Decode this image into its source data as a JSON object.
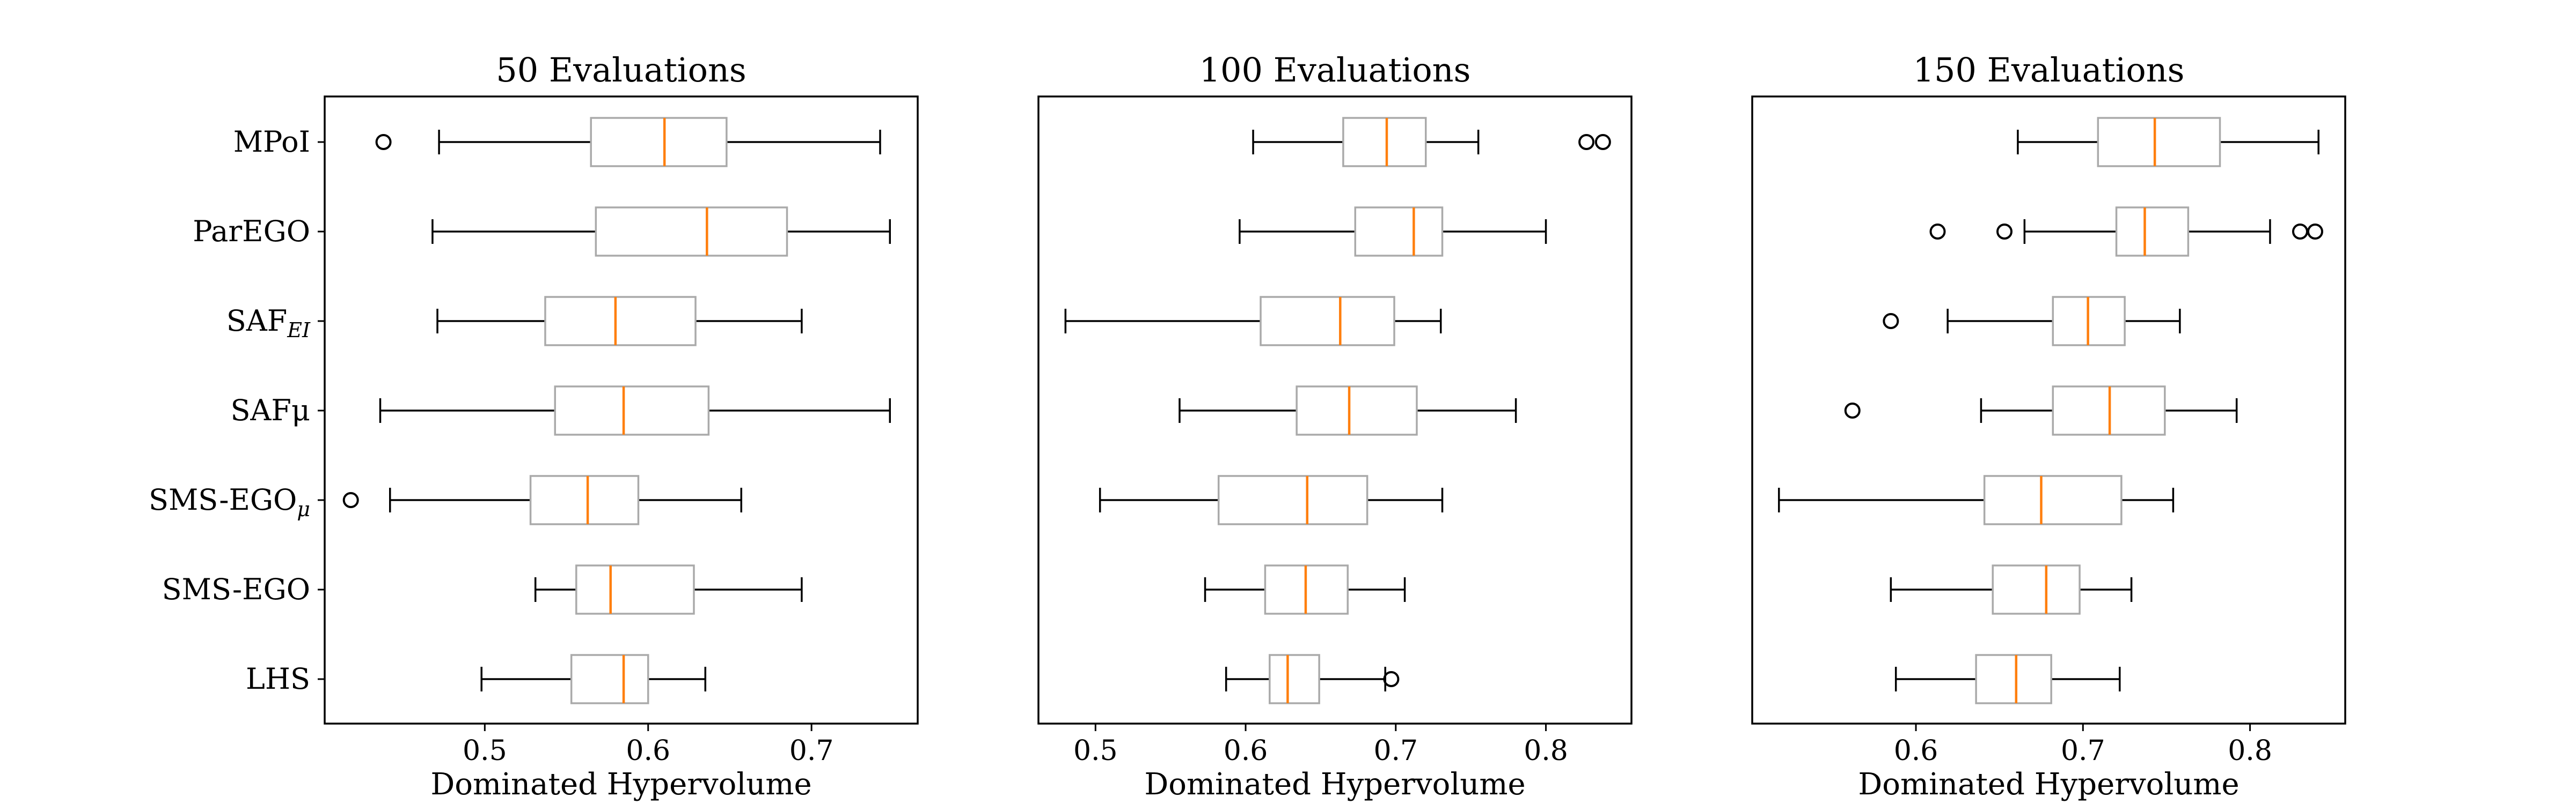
{
  "chart_data": {
    "type": "box",
    "orientation": "horizontal",
    "categories": [
      "MPoI",
      "ParEGO",
      "SAF_EI",
      "SAFμ",
      "SMS-EGO_μ",
      "SMS-EGO",
      "LHS"
    ],
    "category_labels": [
      {
        "main": "MPoI",
        "sub": ""
      },
      {
        "main": "ParEGO",
        "sub": ""
      },
      {
        "main": "SAF",
        "sub": "EI"
      },
      {
        "main": "SAFμ",
        "sub": ""
      },
      {
        "main": "SMS-EGO",
        "sub": "μ"
      },
      {
        "main": "SMS-EGO",
        "sub": ""
      },
      {
        "main": "LHS",
        "sub": ""
      }
    ],
    "colors": {
      "box": "#aaaaaa",
      "whisker": "#000000",
      "median": "#ff7f0e",
      "flier": "#000000",
      "frame": "#000000"
    },
    "panels": [
      {
        "title": "50 Evaluations",
        "xlabel": "Dominated Hypervolume",
        "xlim": [
          0.402,
          0.765
        ],
        "xticks": [
          0.5,
          0.6,
          0.7
        ],
        "xtick_labels": [
          "0.5",
          "0.6",
          "0.7"
        ],
        "boxes": [
          {
            "name": "MPoI",
            "whislo": 0.472,
            "q1": 0.565,
            "med": 0.61,
            "q3": 0.648,
            "whishi": 0.742,
            "fliers": [
              0.438
            ]
          },
          {
            "name": "ParEGO",
            "whislo": 0.468,
            "q1": 0.568,
            "med": 0.636,
            "q3": 0.685,
            "whishi": 0.748,
            "fliers": []
          },
          {
            "name": "SAF_EI",
            "whislo": 0.471,
            "q1": 0.537,
            "med": 0.58,
            "q3": 0.629,
            "whishi": 0.694,
            "fliers": []
          },
          {
            "name": "SAFμ",
            "whislo": 0.436,
            "q1": 0.543,
            "med": 0.585,
            "q3": 0.637,
            "whishi": 0.748,
            "fliers": []
          },
          {
            "name": "SMS-EGO_μ",
            "whislo": 0.442,
            "q1": 0.528,
            "med": 0.563,
            "q3": 0.594,
            "whishi": 0.657,
            "fliers": [
              0.418
            ]
          },
          {
            "name": "SMS-EGO",
            "whislo": 0.531,
            "q1": 0.556,
            "med": 0.577,
            "q3": 0.628,
            "whishi": 0.694,
            "fliers": []
          },
          {
            "name": "LHS",
            "whislo": 0.498,
            "q1": 0.553,
            "med": 0.585,
            "q3": 0.6,
            "whishi": 0.635,
            "fliers": []
          }
        ]
      },
      {
        "title": "100 Evaluations",
        "xlabel": "Dominated Hypervolume",
        "xlim": [
          0.462,
          0.857
        ],
        "xticks": [
          0.5,
          0.6,
          0.7,
          0.8
        ],
        "xtick_labels": [
          "0.5",
          "0.6",
          "0.7",
          "0.8"
        ],
        "boxes": [
          {
            "name": "MPoI",
            "whislo": 0.605,
            "q1": 0.665,
            "med": 0.694,
            "q3": 0.72,
            "whishi": 0.755,
            "fliers": [
              0.827,
              0.838
            ]
          },
          {
            "name": "ParEGO",
            "whislo": 0.596,
            "q1": 0.673,
            "med": 0.712,
            "q3": 0.731,
            "whishi": 0.8,
            "fliers": []
          },
          {
            "name": "SAF_EI",
            "whislo": 0.48,
            "q1": 0.61,
            "med": 0.663,
            "q3": 0.699,
            "whishi": 0.73,
            "fliers": []
          },
          {
            "name": "SAFμ",
            "whislo": 0.556,
            "q1": 0.634,
            "med": 0.669,
            "q3": 0.714,
            "whishi": 0.78,
            "fliers": []
          },
          {
            "name": "SMS-EGO_μ",
            "whislo": 0.503,
            "q1": 0.582,
            "med": 0.641,
            "q3": 0.681,
            "whishi": 0.731,
            "fliers": []
          },
          {
            "name": "SMS-EGO",
            "whislo": 0.573,
            "q1": 0.613,
            "med": 0.64,
            "q3": 0.668,
            "whishi": 0.706,
            "fliers": []
          },
          {
            "name": "LHS",
            "whislo": 0.587,
            "q1": 0.616,
            "med": 0.628,
            "q3": 0.649,
            "whishi": 0.693,
            "fliers": [
              0.697
            ]
          }
        ]
      },
      {
        "title": "150 Evaluations",
        "xlabel": "Dominated Hypervolume",
        "xlim": [
          0.502,
          0.857
        ],
        "xticks": [
          0.6,
          0.7,
          0.8
        ],
        "xtick_labels": [
          "0.6",
          "0.7",
          "0.8"
        ],
        "boxes": [
          {
            "name": "MPoI",
            "whislo": 0.661,
            "q1": 0.709,
            "med": 0.743,
            "q3": 0.782,
            "whishi": 0.841,
            "fliers": []
          },
          {
            "name": "ParEGO",
            "whislo": 0.665,
            "q1": 0.72,
            "med": 0.737,
            "q3": 0.763,
            "whishi": 0.812,
            "fliers": [
              0.613,
              0.653,
              0.83,
              0.839
            ]
          },
          {
            "name": "SAF_EI",
            "whislo": 0.619,
            "q1": 0.682,
            "med": 0.703,
            "q3": 0.725,
            "whishi": 0.758,
            "fliers": [
              0.585
            ]
          },
          {
            "name": "SAFμ",
            "whislo": 0.639,
            "q1": 0.682,
            "med": 0.716,
            "q3": 0.749,
            "whishi": 0.792,
            "fliers": [
              0.562
            ]
          },
          {
            "name": "SMS-EGO_μ",
            "whislo": 0.518,
            "q1": 0.641,
            "med": 0.675,
            "q3": 0.723,
            "whishi": 0.754,
            "fliers": []
          },
          {
            "name": "SMS-EGO",
            "whislo": 0.585,
            "q1": 0.646,
            "med": 0.678,
            "q3": 0.698,
            "whishi": 0.729,
            "fliers": []
          },
          {
            "name": "LHS",
            "whislo": 0.588,
            "q1": 0.636,
            "med": 0.66,
            "q3": 0.681,
            "whishi": 0.722,
            "fliers": []
          }
        ]
      }
    ]
  }
}
